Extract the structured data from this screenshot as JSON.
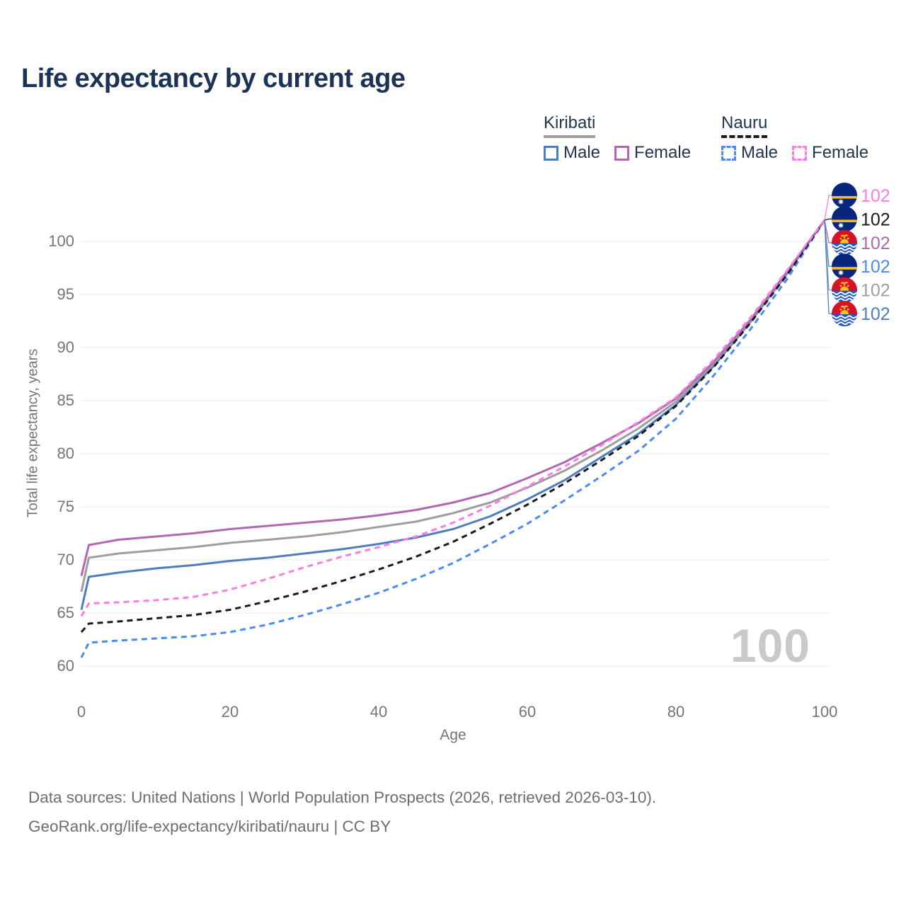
{
  "title": "Life expectancy by current age",
  "legend": {
    "groups": [
      {
        "country": "Kiribati",
        "items": [
          {
            "label": "Male"
          },
          {
            "label": "Female"
          }
        ]
      },
      {
        "country": "Nauru",
        "items": [
          {
            "label": "Male"
          },
          {
            "label": "Female"
          }
        ]
      }
    ]
  },
  "chart_data": {
    "type": "line",
    "title": "Life expectancy by current age",
    "xlabel": "Age",
    "ylabel": "Total life expectancy, years",
    "xlim": [
      0,
      100
    ],
    "ylim": [
      58,
      104
    ],
    "x_ticks": [
      0,
      20,
      40,
      60,
      80,
      100
    ],
    "y_ticks": [
      60,
      65,
      70,
      75,
      80,
      85,
      90,
      95,
      100
    ],
    "grid": "horizontal-only",
    "gridline_color": "#ebebeb",
    "tick_label_color": "#757575",
    "watermark": "100",
    "x": [
      0,
      1,
      5,
      10,
      15,
      20,
      25,
      30,
      35,
      40,
      45,
      50,
      55,
      60,
      65,
      70,
      75,
      80,
      85,
      90,
      95,
      100
    ],
    "series": [
      {
        "id": "nauru-female",
        "name": "Nauru Female",
        "country": "Nauru",
        "sex": "Female",
        "style": "dashed",
        "color": "#fb7ce8",
        "flag_icon": "nauru-flag-icon",
        "end_label": "102",
        "values": [
          64.7,
          65.9,
          66.0,
          66.2,
          66.5,
          67.2,
          68.2,
          69.3,
          70.3,
          71.2,
          72.2,
          73.5,
          75.1,
          76.9,
          78.8,
          80.8,
          83.0,
          85.3,
          88.8,
          92.8,
          97.3,
          102
        ]
      },
      {
        "id": "nauru-total",
        "name": "Nauru",
        "country": "Nauru",
        "sex": "Both",
        "style": "dashed",
        "color": "#1a1a1a",
        "flag_icon": "nauru-flag-icon",
        "end_label": "102",
        "values": [
          63.2,
          64.0,
          64.2,
          64.5,
          64.8,
          65.3,
          66.1,
          67.0,
          68.0,
          69.1,
          70.3,
          71.7,
          73.4,
          75.2,
          77.2,
          79.4,
          81.7,
          84.5,
          88.1,
          92.3,
          96.9,
          102
        ]
      },
      {
        "id": "kiribati-female",
        "name": "Kiribati Female",
        "country": "Kiribati",
        "sex": "Female",
        "style": "solid",
        "color": "#b268af",
        "flag_icon": "kiribati-flag-icon",
        "end_label": "102",
        "values": [
          68.5,
          71.4,
          71.9,
          72.2,
          72.5,
          72.9,
          73.2,
          73.5,
          73.8,
          74.2,
          74.7,
          75.4,
          76.3,
          77.7,
          79.2,
          81.0,
          82.9,
          85.2,
          88.6,
          92.6,
          97.2,
          102
        ]
      },
      {
        "id": "nauru-male",
        "name": "Nauru Male",
        "country": "Nauru",
        "sex": "Male",
        "style": "dashed",
        "color": "#4a8af4",
        "flag_icon": "nauru-flag-icon",
        "end_label": "102",
        "values": [
          60.8,
          62.2,
          62.4,
          62.6,
          62.8,
          63.2,
          63.9,
          64.8,
          65.8,
          66.9,
          68.2,
          69.7,
          71.5,
          73.4,
          75.6,
          77.9,
          80.3,
          83.3,
          87.3,
          91.7,
          96.5,
          102
        ]
      },
      {
        "id": "kiribati-total",
        "name": "Kiribati",
        "country": "Kiribati",
        "sex": "Both",
        "style": "solid",
        "color": "#9e9e9e",
        "flag_icon": "kiribati-flag-icon",
        "end_label": "102",
        "values": [
          67.0,
          70.2,
          70.6,
          70.9,
          71.2,
          71.6,
          71.9,
          72.2,
          72.6,
          73.1,
          73.6,
          74.4,
          75.4,
          76.8,
          78.4,
          80.3,
          82.4,
          84.9,
          88.4,
          92.5,
          97.1,
          102
        ]
      },
      {
        "id": "kiribati-male",
        "name": "Kiribati Male",
        "country": "Kiribati",
        "sex": "Male",
        "style": "solid",
        "color": "#4d7ec0",
        "flag_icon": "kiribati-flag-icon",
        "end_label": "102",
        "values": [
          65.3,
          68.4,
          68.8,
          69.2,
          69.5,
          69.9,
          70.2,
          70.6,
          71.0,
          71.5,
          72.1,
          72.9,
          74.1,
          75.7,
          77.5,
          79.7,
          81.9,
          84.6,
          88.2,
          92.4,
          97.0,
          102
        ]
      }
    ],
    "legend_position": "top-right"
  },
  "footer": {
    "line1": "Data sources: United Nations | World Population Prospects (2026, retrieved 2026-03-10).",
    "line2": "GeoRank.org/life-expectancy/kiribati/nauru | CC BY"
  }
}
